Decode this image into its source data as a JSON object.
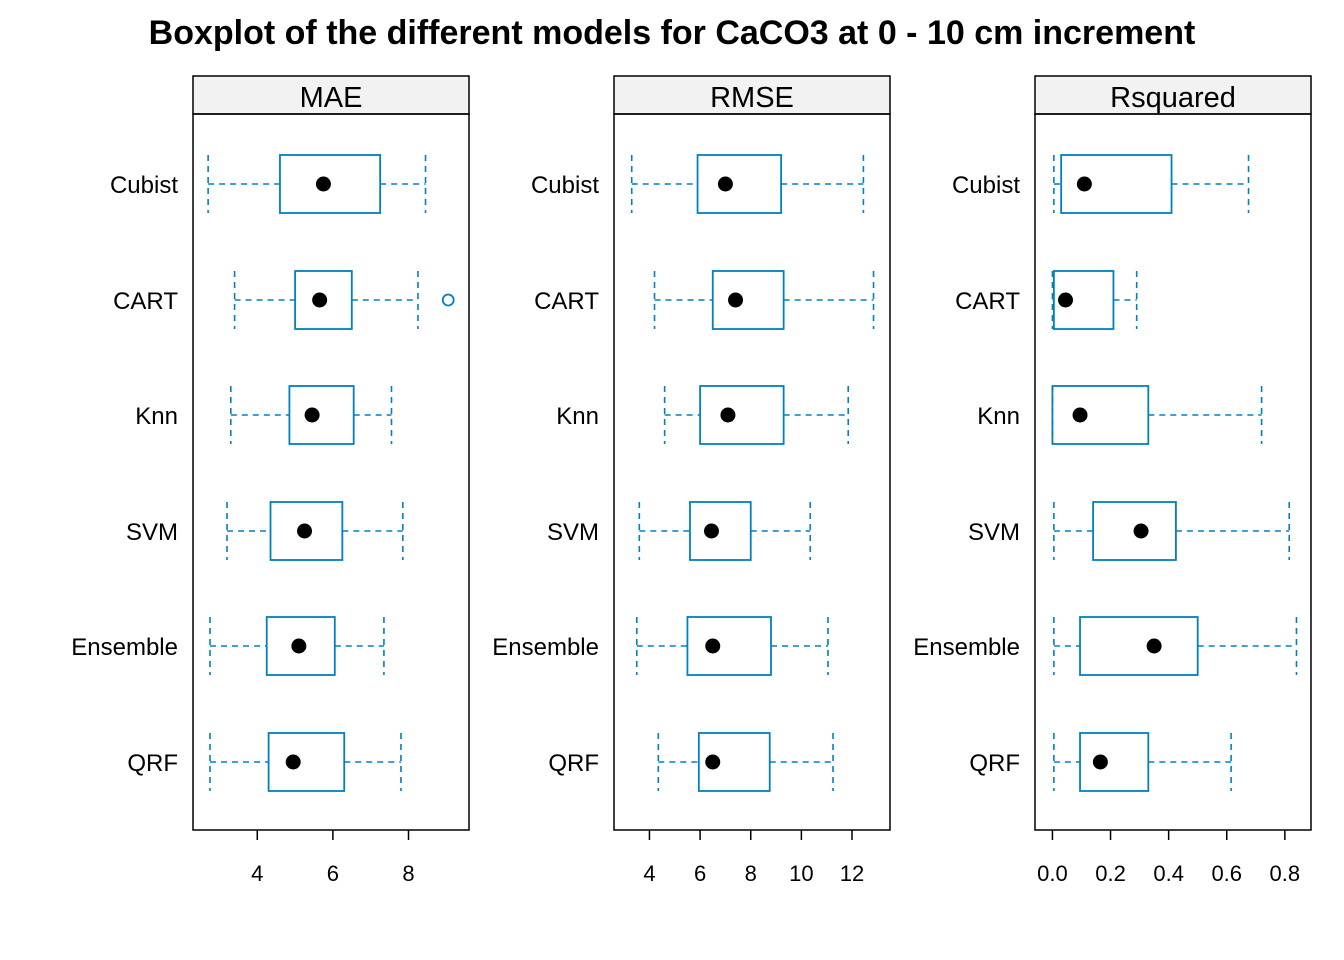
{
  "chart_data": {
    "type": "boxplot",
    "title": "Boxplot of the different models for CaCO3 at 0 - 10 cm increment",
    "categories": [
      "Cubist",
      "CART",
      "Knn",
      "SVM",
      "Ensemble",
      "QRF"
    ],
    "colors": {
      "box": "#0080C0",
      "median_dot": "#000000",
      "strip_bg": "#F2F2F2"
    },
    "panels": [
      {
        "name": "MAE",
        "xlim": [
          2.3,
          9.6
        ],
        "ticks": [
          4,
          6,
          8
        ],
        "boxes": [
          {
            "category": "Cubist",
            "whisker_low": 2.7,
            "q1": 4.6,
            "median": 5.75,
            "q3": 7.25,
            "whisker_high": 8.45,
            "outliers": []
          },
          {
            "category": "CART",
            "whisker_low": 3.4,
            "q1": 5.0,
            "median": 5.65,
            "q3": 6.5,
            "whisker_high": 8.25,
            "outliers": [
              9.05
            ]
          },
          {
            "category": "Knn",
            "whisker_low": 3.3,
            "q1": 4.85,
            "median": 5.45,
            "q3": 6.55,
            "whisker_high": 7.55,
            "outliers": []
          },
          {
            "category": "SVM",
            "whisker_low": 3.2,
            "q1": 4.35,
            "median": 5.25,
            "q3": 6.25,
            "whisker_high": 7.85,
            "outliers": []
          },
          {
            "category": "Ensemble",
            "whisker_low": 2.75,
            "q1": 4.25,
            "median": 5.1,
            "q3": 6.05,
            "whisker_high": 7.35,
            "outliers": []
          },
          {
            "category": "QRF",
            "whisker_low": 2.75,
            "q1": 4.3,
            "median": 4.95,
            "q3": 6.3,
            "whisker_high": 7.8,
            "outliers": []
          }
        ]
      },
      {
        "name": "RMSE",
        "xlim": [
          2.6,
          13.5
        ],
        "ticks": [
          4,
          6,
          8,
          10,
          12
        ],
        "boxes": [
          {
            "category": "Cubist",
            "whisker_low": 3.3,
            "q1": 5.9,
            "median": 7.0,
            "q3": 9.2,
            "whisker_high": 12.45,
            "outliers": []
          },
          {
            "category": "CART",
            "whisker_low": 4.2,
            "q1": 6.5,
            "median": 7.4,
            "q3": 9.3,
            "whisker_high": 12.85,
            "outliers": []
          },
          {
            "category": "Knn",
            "whisker_low": 4.6,
            "q1": 6.0,
            "median": 7.1,
            "q3": 9.3,
            "whisker_high": 11.85,
            "outliers": []
          },
          {
            "category": "SVM",
            "whisker_low": 3.6,
            "q1": 5.6,
            "median": 6.45,
            "q3": 8.0,
            "whisker_high": 10.35,
            "outliers": []
          },
          {
            "category": "Ensemble",
            "whisker_low": 3.5,
            "q1": 5.5,
            "median": 6.5,
            "q3": 8.8,
            "whisker_high": 11.05,
            "outliers": []
          },
          {
            "category": "QRF",
            "whisker_low": 4.35,
            "q1": 5.95,
            "median": 6.5,
            "q3": 8.75,
            "whisker_high": 11.25,
            "outliers": []
          }
        ]
      },
      {
        "name": "Rsquared",
        "xlim": [
          -0.06,
          0.89
        ],
        "ticks": [
          0.0,
          0.2,
          0.4,
          0.6,
          0.8
        ],
        "tick_labels": [
          "0.0",
          "0.2",
          "0.4",
          "0.6",
          "0.8"
        ],
        "boxes": [
          {
            "category": "Cubist",
            "whisker_low": 0.005,
            "q1": 0.03,
            "median": 0.11,
            "q3": 0.41,
            "whisker_high": 0.675,
            "outliers": []
          },
          {
            "category": "CART",
            "whisker_low": 0.0,
            "q1": 0.005,
            "median": 0.045,
            "q3": 0.21,
            "whisker_high": 0.29,
            "outliers": []
          },
          {
            "category": "Knn",
            "whisker_low": 0.0,
            "q1": 0.0,
            "median": 0.095,
            "q3": 0.33,
            "whisker_high": 0.72,
            "outliers": []
          },
          {
            "category": "SVM",
            "whisker_low": 0.005,
            "q1": 0.14,
            "median": 0.305,
            "q3": 0.425,
            "whisker_high": 0.815,
            "outliers": []
          },
          {
            "category": "Ensemble",
            "whisker_low": 0.005,
            "q1": 0.095,
            "median": 0.35,
            "q3": 0.5,
            "whisker_high": 0.84,
            "outliers": []
          },
          {
            "category": "QRF",
            "whisker_low": 0.005,
            "q1": 0.095,
            "median": 0.165,
            "q3": 0.33,
            "whisker_high": 0.615,
            "outliers": []
          }
        ]
      }
    ]
  }
}
